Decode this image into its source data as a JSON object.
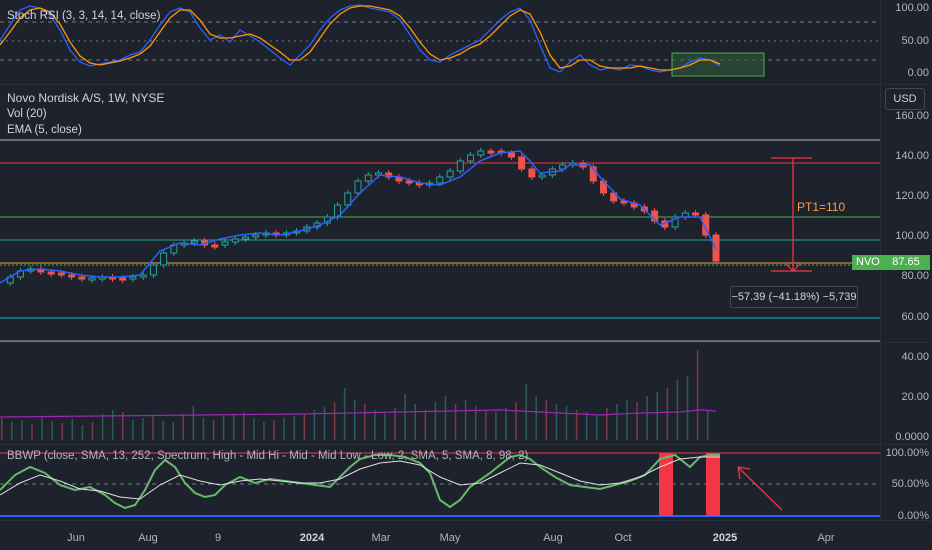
{
  "stoch_pane": {
    "legend": "Stoch RSI (3, 3, 14, 14, close)",
    "ticks": [
      "100.00",
      "50.00",
      "0.00"
    ]
  },
  "main_pane": {
    "title": "Novo Nordisk A/S, 1W, NYSE",
    "vol_legend": "Vol (20)",
    "ema_legend": "EMA (5, close)",
    "currency_button": "USD",
    "ticks": [
      "160.00",
      "140.00",
      "120.00",
      "100.00",
      "80.00",
      "60.00"
    ],
    "symbol_badge": "NVO",
    "price_badge": "87.65",
    "pt1_label": "PT1=110",
    "measure_label": "−57.39 (−41.18%) −5,739"
  },
  "volume_pane": {
    "ticks": [
      "40.00",
      "20.00",
      "0.0000"
    ]
  },
  "bbwp_pane": {
    "legend": "BBWP (close, SMA, 13, 252, Spectrum, High - Mid Hi - Mid - Mid Low - Low, 2, SMA, 5, SMA, 8, 98, 2)",
    "ticks": [
      "100.00%",
      "50.00%",
      "0.00%"
    ]
  },
  "time_axis": {
    "labels": [
      "Jun",
      "Aug",
      "9",
      "2024",
      "Mar",
      "May",
      "Aug",
      "Oct",
      "2025",
      "Apr"
    ]
  },
  "colors": {
    "up": "#26a69a",
    "down": "#ef5350",
    "stoch_k": "#2962ff",
    "stoch_d": "#ff9800",
    "ema": "#2962ff",
    "green_line": "#4caf50",
    "red_line": "#f23645",
    "measure": "#f23645",
    "pt1": "#f7a13a"
  }
}
